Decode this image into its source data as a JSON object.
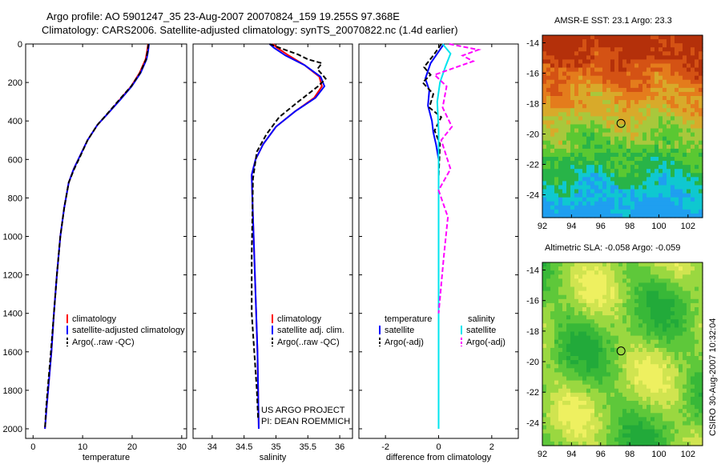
{
  "figure": {
    "title_line1": "Argo profile: AO 5901247_35 23-Aug-2007 20070824_159 19.255S 97.368E",
    "title_line2": "Climatology: CARS2006. Satellite-adjusted climatology: synTS_20070822.nc (1.4d earlier)",
    "side_note": "CSIRO 30-Aug-2007 10:32:04"
  },
  "chart_data": [
    {
      "type": "line",
      "id": "temperature",
      "xlabel": "temperature",
      "ylabel": "",
      "xlim": [
        -1.5,
        31
      ],
      "ylim": [
        2050,
        0
      ],
      "xticks": [
        "0",
        "10",
        "20",
        "30"
      ],
      "yticks": [
        "0",
        "200",
        "400",
        "600",
        "800",
        "1000",
        "1200",
        "1400",
        "1600",
        "1800",
        "2000"
      ],
      "legend": [
        "climatology",
        "satellite-adjusted climatology",
        "Argo(..raw -QC)"
      ],
      "colors": {
        "climatology": "#ff0000",
        "satellite": "#0000ff",
        "argo": "#000000"
      },
      "series": [
        {
          "name": "climatology",
          "color": "#ff0000",
          "style": "solid",
          "x": [
            23.2,
            23.0,
            22.7,
            21.5,
            19.8,
            17.5,
            15.5,
            13.0,
            11.0,
            9.5,
            8.2,
            7.2,
            6.3,
            5.5,
            4.8,
            4.2,
            3.7,
            3.2,
            2.7,
            2.4
          ],
          "y": [
            0,
            40,
            80,
            150,
            220,
            290,
            350,
            420,
            500,
            580,
            650,
            720,
            850,
            1000,
            1200,
            1400,
            1600,
            1750,
            1900,
            2000
          ]
        },
        {
          "name": "satellite-adjusted climatology",
          "color": "#0000ff",
          "style": "solid",
          "x": [
            23.4,
            23.2,
            22.9,
            21.7,
            19.9,
            17.6,
            15.5,
            13.0,
            11.0,
            9.5,
            8.2,
            7.2,
            6.3,
            5.5,
            4.8,
            4.2,
            3.7,
            3.2,
            2.7,
            2.4
          ],
          "y": [
            0,
            40,
            80,
            150,
            220,
            290,
            350,
            420,
            500,
            580,
            650,
            720,
            850,
            1000,
            1200,
            1400,
            1600,
            1750,
            1900,
            2000
          ]
        },
        {
          "name": "Argo(..raw -QC)",
          "color": "#000000",
          "style": "dash",
          "x": [
            23.3,
            23.1,
            22.8,
            21.6,
            19.8,
            17.4,
            15.4,
            13.0,
            11.0,
            9.6,
            8.3,
            7.2,
            6.3,
            5.5,
            4.8,
            4.2,
            3.6,
            3.1,
            2.6,
            2.4
          ],
          "y": [
            0,
            40,
            80,
            150,
            220,
            290,
            350,
            420,
            500,
            580,
            650,
            720,
            850,
            1000,
            1200,
            1400,
            1600,
            1750,
            1900,
            2000
          ]
        }
      ]
    },
    {
      "type": "line",
      "id": "salinity",
      "xlabel": "salinity",
      "xlim": [
        33.7,
        36.2
      ],
      "ylim": [
        2050,
        0
      ],
      "xticks": [
        "34",
        "34.5",
        "35",
        "35.5",
        "36"
      ],
      "legend": [
        "climatology",
        "satellite adj. clim.",
        "Argo(..raw -QC)"
      ],
      "annotation": [
        "US ARGO PROJECT",
        "PI: DEAN ROEMMICH"
      ],
      "series": [
        {
          "name": "climatology",
          "color": "#ff0000",
          "style": "solid",
          "x": [
            34.95,
            35.02,
            35.2,
            35.45,
            35.68,
            35.72,
            35.6,
            35.3,
            35.0,
            34.8,
            34.68,
            34.62,
            34.63,
            34.65,
            34.67,
            34.69,
            34.71,
            34.72,
            34.73
          ],
          "y": [
            0,
            20,
            60,
            110,
            170,
            220,
            280,
            350,
            430,
            520,
            600,
            680,
            800,
            1000,
            1200,
            1400,
            1600,
            1800,
            2000
          ]
        },
        {
          "name": "satellite adj. clim.",
          "color": "#0000ff",
          "style": "solid",
          "x": [
            34.9,
            34.97,
            35.15,
            35.45,
            35.7,
            35.76,
            35.62,
            35.3,
            35.0,
            34.8,
            34.68,
            34.62,
            34.63,
            34.65,
            34.67,
            34.69,
            34.71,
            34.72,
            34.73
          ],
          "y": [
            0,
            20,
            60,
            110,
            170,
            220,
            280,
            350,
            430,
            520,
            600,
            680,
            800,
            1000,
            1200,
            1400,
            1600,
            1800,
            2000
          ]
        },
        {
          "name": "Argo(..raw -QC)",
          "color": "#000000",
          "style": "dash",
          "x": [
            34.9,
            35.1,
            35.35,
            35.5,
            35.72,
            35.65,
            35.78,
            35.66,
            35.35,
            35.05,
            34.85,
            34.7,
            34.64,
            34.63,
            34.62,
            34.62,
            34.66,
            34.7,
            34.72
          ],
          "y": [
            0,
            25,
            55,
            80,
            100,
            130,
            180,
            220,
            300,
            380,
            470,
            560,
            700,
            900,
            1100,
            1400,
            1600,
            1800,
            1950
          ]
        }
      ]
    },
    {
      "type": "line",
      "id": "difference",
      "xlabel": "difference from climatology",
      "xlim": [
        -3,
        3
      ],
      "ylim": [
        2050,
        0
      ],
      "xticks": [
        "-2",
        "0",
        "2"
      ],
      "legend": [
        "temperature",
        "satellite",
        "Argo(-adj)",
        "salinity",
        "satellite",
        "Argo(-adj)"
      ],
      "series": [
        {
          "name": "satellite",
          "group": "temperature",
          "color": "#0000ff",
          "style": "solid",
          "x": [
            0.2,
            0.0,
            -0.3,
            -0.5,
            -0.35,
            -0.4,
            -0.25,
            -0.2,
            -0.1,
            0.0,
            0.0,
            0.0,
            0.0,
            0.0,
            0.0
          ],
          "y": [
            0,
            40,
            100,
            180,
            240,
            320,
            400,
            460,
            520,
            600,
            800,
            1200,
            1600,
            1800,
            1950
          ]
        },
        {
          "name": "Argo(-adj)",
          "group": "temperature",
          "color": "#000000",
          "style": "dash",
          "x": [
            0.1,
            -0.2,
            -0.55,
            -0.3,
            -0.6,
            -0.2,
            -0.35,
            0.1,
            -0.15,
            0.05,
            0.0,
            0.0,
            0.0,
            0.0
          ],
          "y": [
            0,
            60,
            120,
            160,
            200,
            260,
            330,
            380,
            450,
            520,
            700,
            1000,
            1400,
            1850
          ]
        },
        {
          "name": "satellite",
          "group": "salinity",
          "color": "#00e5ee",
          "style": "solid",
          "x": [
            0.15,
            0.45,
            0.25,
            0.05,
            -0.05,
            0.0,
            0.0,
            0.0,
            0.0,
            0.0
          ],
          "y": [
            0,
            50,
            120,
            200,
            300,
            450,
            700,
            1100,
            1600,
            2000
          ]
        },
        {
          "name": "Argo(-adj)",
          "group": "salinity",
          "color": "#ff00ff",
          "style": "dash",
          "x": [
            0.4,
            1.5,
            0.9,
            1.3,
            -0.15,
            0.3,
            0.15,
            0.5,
            0.1,
            0.45,
            0.0,
            0.35,
            0.2,
            0.0
          ],
          "y": [
            0,
            30,
            60,
            90,
            160,
            220,
            330,
            430,
            500,
            650,
            760,
            900,
            1100,
            1400
          ]
        }
      ]
    },
    {
      "type": "heatmap",
      "id": "sst",
      "title": "AMSR-E SST: 23.1 Argo: 23.3",
      "xlim": [
        92,
        103
      ],
      "ylim": [
        -25.5,
        -13.5
      ],
      "xticks": [
        "92",
        "94",
        "96",
        "98",
        "100",
        "102"
      ],
      "yticks": [
        "-14",
        "-16",
        "-18",
        "-20",
        "-22",
        "-24"
      ],
      "marker": {
        "lon": 97.4,
        "lat": -19.3
      },
      "palette": [
        "#1f9ff0",
        "#0fc8d0",
        "#28b448",
        "#5ac832",
        "#a8c83c",
        "#d8aa2a",
        "#e47c1c",
        "#d45214",
        "#b4300a"
      ]
    },
    {
      "type": "heatmap",
      "id": "sla",
      "title": "Altimetric SLA: -0.058 Argo: -0.059",
      "xlim": [
        92,
        103
      ],
      "ylim": [
        -25.5,
        -13.5
      ],
      "xticks": [
        "92",
        "94",
        "96",
        "98",
        "100",
        "102"
      ],
      "yticks": [
        "-14",
        "-16",
        "-18",
        "-20",
        "-22",
        "-24"
      ],
      "marker": {
        "lon": 97.4,
        "lat": -19.3
      },
      "palette": [
        "#22aa3a",
        "#38b838",
        "#5ec83a",
        "#9ad840",
        "#d0e450",
        "#eef060"
      ]
    }
  ]
}
